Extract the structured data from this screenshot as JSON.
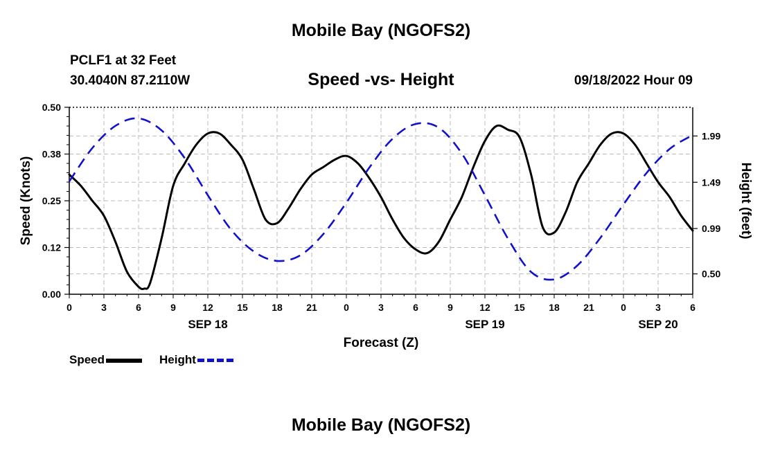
{
  "header": {
    "title": "Mobile Bay (NGOFS2)",
    "station": "PCLF1 at 32 Feet",
    "coords": "30.4040N  87.2110W",
    "subtitle": "Speed -vs- Height",
    "datetime": "09/18/2022 Hour 09"
  },
  "footer": {
    "title": "Mobile Bay (NGOFS2)"
  },
  "legend": {
    "speed_label": "Speed",
    "height_label": "Height"
  },
  "colors": {
    "speed": "#000000",
    "height": "#1111cc",
    "grid": "#bbbbbb"
  },
  "chart_data": {
    "type": "line",
    "xlabel": "Forecast (Z)",
    "ylabel": "Speed (Knots)",
    "y2label": "Height (feet)",
    "xlim": [
      0,
      54
    ],
    "ylim": [
      0,
      0.5
    ],
    "y2lim": [
      0.28,
      2.3
    ],
    "x_ticks": [
      0,
      3,
      6,
      9,
      12,
      15,
      18,
      21,
      24,
      27,
      30,
      33,
      36,
      39,
      42,
      45,
      48,
      51,
      54
    ],
    "x_tick_labels": [
      "0",
      "3",
      "6",
      "9",
      "12",
      "15",
      "18",
      "21",
      "0",
      "3",
      "6",
      "9",
      "12",
      "15",
      "18",
      "21",
      "0",
      "3",
      "6"
    ],
    "day_labels": [
      {
        "x": 12,
        "label": "SEP 18"
      },
      {
        "x": 36,
        "label": "SEP 19"
      },
      {
        "x": 51,
        "label": "SEP 20"
      }
    ],
    "y_ticks": [
      0.0,
      0.125,
      0.25,
      0.375,
      0.5
    ],
    "y_tick_labels": [
      "0.00",
      "0.12",
      "0.25",
      "0.38",
      "0.50"
    ],
    "y2_ticks": [
      0.5,
      0.99,
      1.49,
      1.99
    ],
    "y2_tick_labels": [
      "0.50",
      "0.99",
      "1.49",
      "1.99"
    ],
    "grid": true,
    "legend_position": "bottom-left",
    "series": [
      {
        "name": "Speed",
        "axis": "left",
        "style": "solid",
        "x": [
          0,
          1,
          2,
          3,
          4,
          5,
          6,
          6.5,
          7,
          8,
          9,
          10,
          11,
          12,
          13,
          14,
          15,
          16,
          17,
          18,
          19,
          20,
          21,
          22,
          23,
          24,
          25,
          26,
          27,
          28,
          29,
          30,
          31,
          32,
          33,
          34,
          35,
          36,
          37,
          38,
          39,
          40,
          41,
          42,
          43,
          44,
          45,
          46,
          47,
          48,
          49,
          50,
          51,
          52,
          53,
          54
        ],
        "y": [
          0.32,
          0.29,
          0.25,
          0.21,
          0.14,
          0.06,
          0.02,
          0.015,
          0.03,
          0.15,
          0.29,
          0.35,
          0.4,
          0.43,
          0.43,
          0.4,
          0.36,
          0.28,
          0.2,
          0.19,
          0.23,
          0.28,
          0.32,
          0.34,
          0.36,
          0.37,
          0.35,
          0.31,
          0.26,
          0.2,
          0.15,
          0.12,
          0.11,
          0.14,
          0.2,
          0.26,
          0.34,
          0.41,
          0.45,
          0.44,
          0.42,
          0.32,
          0.18,
          0.165,
          0.22,
          0.3,
          0.35,
          0.4,
          0.43,
          0.43,
          0.4,
          0.35,
          0.3,
          0.26,
          0.21,
          0.17
        ]
      },
      {
        "name": "Height",
        "axis": "right",
        "style": "dashed",
        "x": [
          0,
          2,
          4,
          6,
          8,
          10,
          12,
          14,
          16,
          18,
          20,
          22,
          24,
          26,
          28,
          30,
          32,
          34,
          36,
          38,
          40,
          42,
          44,
          46,
          48,
          50,
          52,
          54
        ],
        "y": [
          1.5,
          1.86,
          2.1,
          2.18,
          2.05,
          1.75,
          1.35,
          0.98,
          0.74,
          0.64,
          0.7,
          0.93,
          1.27,
          1.65,
          1.96,
          2.12,
          2.08,
          1.8,
          1.35,
          0.88,
          0.52,
          0.44,
          0.59,
          0.89,
          1.25,
          1.59,
          1.85,
          2.0
        ]
      }
    ]
  }
}
